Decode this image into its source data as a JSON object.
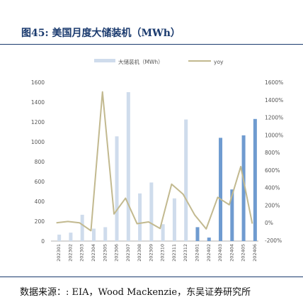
{
  "header": {
    "title": "图45:  美国月度大储装机（MWh）"
  },
  "footer": {
    "source": "数据来源：: EIA，Wood Mackenzie，东吴证券研究所"
  },
  "chart_data": {
    "type": "bar",
    "categories": [
      "202301",
      "202302",
      "202303",
      "202304",
      "202305",
      "202306",
      "202307",
      "202308",
      "202309",
      "202310",
      "202311",
      "202312",
      "202401",
      "202402",
      "202403",
      "202404",
      "202405",
      "202406"
    ],
    "series": [
      {
        "name": "大储装机（MWh）",
        "kind": "bar",
        "axis": "left",
        "values": [
          65,
          85,
          265,
          125,
          140,
          1055,
          1500,
          480,
          590,
          170,
          430,
          1225,
          140,
          35,
          1040,
          520,
          1065,
          1230
        ]
      },
      {
        "name": "yoy",
        "kind": "line",
        "axis": "right",
        "unit": "%",
        "values": [
          0,
          15,
          0,
          -90,
          1490,
          100,
          280,
          -10,
          10,
          -65,
          440,
          325,
          90,
          -70,
          290,
          205,
          640,
          -10
        ]
      }
    ],
    "highlight_from_index": 12,
    "colors": {
      "bar_light": "#cfdcec",
      "bar_dark": "#6f9bd0",
      "line": "#c2b98f"
    },
    "ylim": [
      0,
      1600
    ],
    "y_ticks": [
      0,
      200,
      400,
      600,
      800,
      1000,
      1200,
      1400,
      1600
    ],
    "y2lim": [
      -200,
      1600
    ],
    "y2_ticks": [
      "-200%",
      "0%",
      "200%",
      "400%",
      "600%",
      "800%",
      "1000%",
      "1200%",
      "1400%",
      "1600%"
    ],
    "legend_position": "top-center"
  }
}
